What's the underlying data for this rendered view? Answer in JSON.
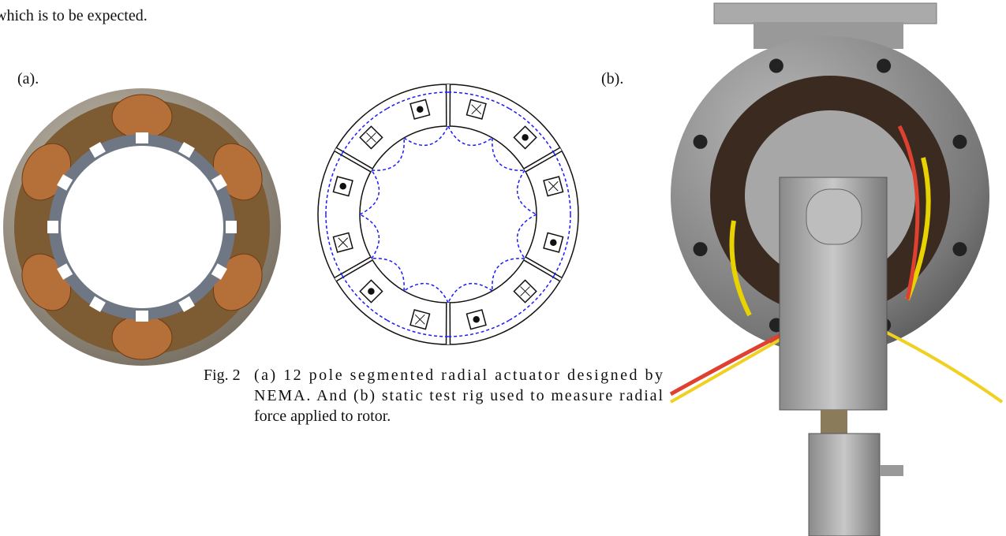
{
  "body_text": "which is to be expected.",
  "figure": {
    "label_a": "(a).",
    "label_b": "(b).",
    "caption": {
      "number": "Fig. 2",
      "lines": [
        "(a) 12 pole segmented radial actuator designed by",
        "NEMA. And (b) static test rig used to measure radial",
        "force applied to rotor."
      ]
    }
  }
}
